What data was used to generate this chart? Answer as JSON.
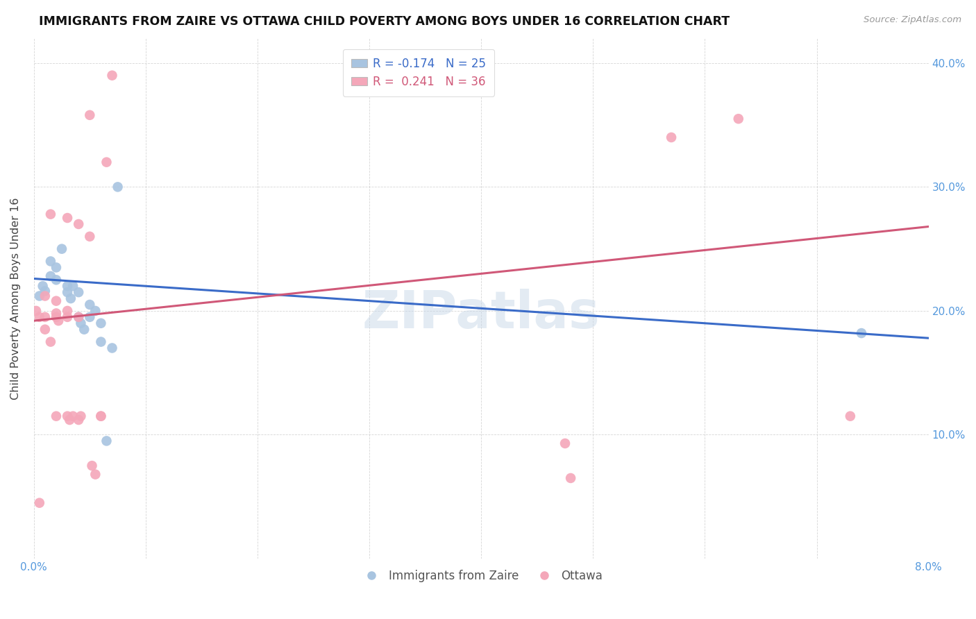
{
  "title": "IMMIGRANTS FROM ZAIRE VS OTTAWA CHILD POVERTY AMONG BOYS UNDER 16 CORRELATION CHART",
  "source": "Source: ZipAtlas.com",
  "ylabel": "Child Poverty Among Boys Under 16",
  "watermark": "ZIPatlas",
  "xlim": [
    0.0,
    0.08
  ],
  "ylim": [
    0.0,
    0.42
  ],
  "xtick_vals": [
    0.0,
    0.01,
    0.02,
    0.03,
    0.04,
    0.05,
    0.06,
    0.07,
    0.08
  ],
  "xtick_labels": [
    "0.0%",
    "",
    "",
    "",
    "",
    "",
    "",
    "",
    "8.0%"
  ],
  "ytick_vals": [
    0.0,
    0.1,
    0.2,
    0.3,
    0.4
  ],
  "ytick_right_labels": [
    "",
    "10.0%",
    "20.0%",
    "30.0%",
    "40.0%"
  ],
  "legend_line1": "R = -0.174   N = 25",
  "legend_line2": "R =  0.241   N = 36",
  "blue_color": "#a8c4e0",
  "pink_color": "#f4a7b9",
  "trendline_blue_color": "#3a6bc8",
  "trendline_pink_color": "#d05878",
  "blue_scatter": [
    [
      0.0005,
      0.212
    ],
    [
      0.0008,
      0.22
    ],
    [
      0.001,
      0.216
    ],
    [
      0.0015,
      0.24
    ],
    [
      0.0015,
      0.228
    ],
    [
      0.002,
      0.235
    ],
    [
      0.002,
      0.225
    ],
    [
      0.0025,
      0.25
    ],
    [
      0.003,
      0.22
    ],
    [
      0.003,
      0.215
    ],
    [
      0.0033,
      0.21
    ],
    [
      0.0035,
      0.22
    ],
    [
      0.004,
      0.215
    ],
    [
      0.004,
      0.195
    ],
    [
      0.0042,
      0.19
    ],
    [
      0.0045,
      0.185
    ],
    [
      0.005,
      0.205
    ],
    [
      0.005,
      0.195
    ],
    [
      0.0055,
      0.2
    ],
    [
      0.006,
      0.19
    ],
    [
      0.006,
      0.175
    ],
    [
      0.0065,
      0.095
    ],
    [
      0.007,
      0.17
    ],
    [
      0.0075,
      0.3
    ],
    [
      0.074,
      0.182
    ]
  ],
  "pink_scatter": [
    [
      0.0002,
      0.2
    ],
    [
      0.0005,
      0.195
    ],
    [
      0.001,
      0.212
    ],
    [
      0.001,
      0.195
    ],
    [
      0.001,
      0.185
    ],
    [
      0.0015,
      0.278
    ],
    [
      0.0015,
      0.175
    ],
    [
      0.002,
      0.208
    ],
    [
      0.002,
      0.198
    ],
    [
      0.002,
      0.195
    ],
    [
      0.002,
      0.115
    ],
    [
      0.0022,
      0.192
    ],
    [
      0.003,
      0.2
    ],
    [
      0.003,
      0.195
    ],
    [
      0.003,
      0.275
    ],
    [
      0.003,
      0.115
    ],
    [
      0.0032,
      0.112
    ],
    [
      0.0035,
      0.115
    ],
    [
      0.004,
      0.27
    ],
    [
      0.004,
      0.195
    ],
    [
      0.004,
      0.112
    ],
    [
      0.0042,
      0.115
    ],
    [
      0.005,
      0.358
    ],
    [
      0.005,
      0.26
    ],
    [
      0.0052,
      0.075
    ],
    [
      0.0055,
      0.068
    ],
    [
      0.006,
      0.115
    ],
    [
      0.006,
      0.115
    ],
    [
      0.0065,
      0.32
    ],
    [
      0.007,
      0.39
    ],
    [
      0.0475,
      0.093
    ],
    [
      0.048,
      0.065
    ],
    [
      0.057,
      0.34
    ],
    [
      0.063,
      0.355
    ],
    [
      0.073,
      0.115
    ],
    [
      0.0005,
      0.045
    ]
  ],
  "blue_trend_x": [
    0.0,
    0.08
  ],
  "blue_trend_y": [
    0.226,
    0.178
  ],
  "pink_trend_x": [
    0.0,
    0.08
  ],
  "pink_trend_y": [
    0.192,
    0.268
  ]
}
